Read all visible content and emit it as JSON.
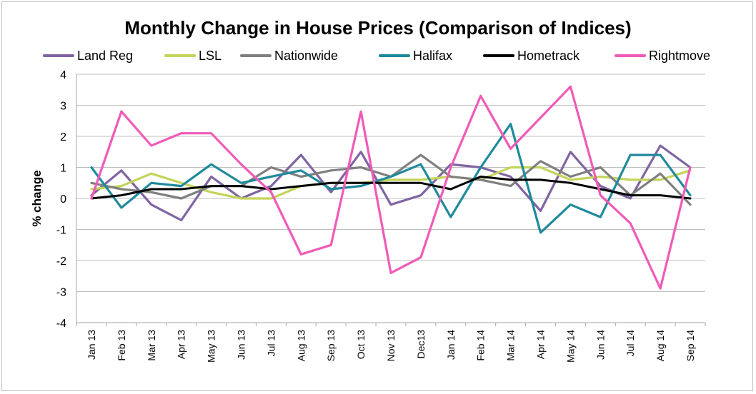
{
  "chart_data": {
    "type": "line",
    "title": "Monthly Change in House Prices (Comparison of Indices)",
    "xlabel": "",
    "ylabel": "% change",
    "ylim": [
      -4,
      4
    ],
    "yticks": [
      -4,
      -3,
      -2,
      -1,
      0,
      1,
      2,
      3,
      4
    ],
    "grid": true,
    "legend_position": "top",
    "categories": [
      "Jan 13",
      "Feb 13",
      "Mar 13",
      "Apr 13",
      "May 13",
      "Jun 13",
      "Jul 13",
      "Aug 13",
      "Sep 13",
      "Oct 13",
      "Nov 13",
      "Dec13",
      "Jan 14",
      "Feb 14",
      "Mar 14",
      "Apr 14",
      "May 14",
      "Jun 14",
      "Jul 14",
      "Aug 14",
      "Sep 14"
    ],
    "series": [
      {
        "name": "Land Reg",
        "color": "#8064a2",
        "values": [
          0.1,
          0.9,
          -0.2,
          -0.7,
          0.7,
          0.0,
          0.4,
          1.4,
          0.2,
          1.5,
          -0.2,
          0.1,
          1.1,
          1.0,
          0.7,
          -0.4,
          1.5,
          0.4,
          0.0,
          1.7,
          1.0
        ]
      },
      {
        "name": "LSL",
        "color": "#c4d45a",
        "values": [
          0.3,
          0.4,
          0.8,
          0.5,
          0.2,
          0.0,
          0.0,
          0.4,
          0.5,
          0.5,
          0.6,
          0.6,
          0.7,
          0.6,
          1.0,
          1.0,
          0.6,
          0.7,
          0.6,
          0.6,
          0.9
        ]
      },
      {
        "name": "Nationwide",
        "color": "#7f7f7f",
        "values": [
          0.5,
          0.3,
          0.2,
          0.0,
          0.4,
          0.4,
          1.0,
          0.7,
          0.9,
          1.0,
          0.7,
          1.4,
          0.7,
          0.6,
          0.4,
          1.2,
          0.7,
          1.0,
          0.1,
          0.8,
          -0.2
        ]
      },
      {
        "name": "Halifax",
        "color": "#1f8a9c",
        "values": [
          1.0,
          -0.3,
          0.5,
          0.4,
          1.1,
          0.5,
          0.7,
          0.9,
          0.3,
          0.4,
          0.7,
          1.1,
          -0.6,
          1.0,
          2.4,
          -1.1,
          -0.2,
          -0.6,
          1.4,
          1.4,
          0.1
        ]
      },
      {
        "name": "Hometrack",
        "color": "#000000",
        "values": [
          0.0,
          0.1,
          0.3,
          0.3,
          0.4,
          0.4,
          0.3,
          0.4,
          0.5,
          0.5,
          0.5,
          0.5,
          0.3,
          0.7,
          0.6,
          0.6,
          0.5,
          0.3,
          0.1,
          0.1,
          0.0
        ]
      },
      {
        "name": "Rightmove",
        "color": "#f05ab8",
        "values": [
          0.0,
          2.8,
          1.7,
          2.1,
          2.1,
          1.1,
          0.2,
          -1.8,
          -1.5,
          2.8,
          -2.4,
          -1.9,
          1.0,
          3.3,
          1.6,
          2.6,
          3.6,
          0.1,
          -0.8,
          -2.9,
          1.0
        ]
      }
    ]
  }
}
